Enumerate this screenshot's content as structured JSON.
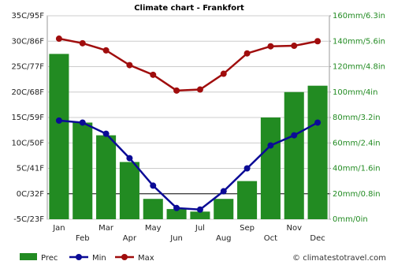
{
  "chart_data": {
    "type": "combo",
    "title": "Climate chart - Frankfort",
    "categories": [
      "Jan",
      "Feb",
      "Mar",
      "Apr",
      "May",
      "Jun",
      "Jul",
      "Aug",
      "Sep",
      "Oct",
      "Nov",
      "Dec"
    ],
    "ylim": [
      -5,
      35
    ],
    "yticks": [
      {
        "value": -5,
        "label": "-5C/23F"
      },
      {
        "value": 0,
        "label": "0C/32F"
      },
      {
        "value": 5,
        "label": "5C/41F"
      },
      {
        "value": 10,
        "label": "10C/50F"
      },
      {
        "value": 15,
        "label": "15C/59F"
      },
      {
        "value": 20,
        "label": "20C/68F"
      },
      {
        "value": 25,
        "label": "25C/77F"
      },
      {
        "value": 30,
        "label": "30C/86F"
      },
      {
        "value": 35,
        "label": "35C/95F"
      }
    ],
    "y2lim": [
      0,
      160
    ],
    "y2ticks": [
      {
        "value": 0,
        "label": "0mm/0in"
      },
      {
        "value": 20,
        "label": "20mm/0.8in"
      },
      {
        "value": 40,
        "label": "40mm/1.6in"
      },
      {
        "value": 60,
        "label": "60mm/2.4in"
      },
      {
        "value": 80,
        "label": "80mm/3.2in"
      },
      {
        "value": 100,
        "label": "100mm/4in"
      },
      {
        "value": 120,
        "label": "120mm/4.8in"
      },
      {
        "value": 140,
        "label": "140mm/5.6in"
      },
      {
        "value": 160,
        "label": "160mm/6.3in"
      }
    ],
    "grid": true,
    "series": [
      {
        "name": "Prec",
        "type": "bar",
        "axis": "y2",
        "color": "#228b22",
        "values": [
          130,
          76,
          66,
          45,
          16,
          8,
          6,
          16,
          30,
          80,
          100,
          105
        ]
      },
      {
        "name": "Min",
        "type": "line",
        "color": "#0b0b96",
        "values": [
          14.4,
          14,
          11.8,
          7,
          1.6,
          -2.8,
          -3.1,
          0.5,
          5,
          9.5,
          11.5,
          14
        ]
      },
      {
        "name": "Max",
        "type": "line",
        "color": "#a00d0d",
        "values": [
          30.5,
          29.6,
          28.2,
          25.3,
          23.4,
          20.3,
          20.5,
          23.6,
          27.6,
          29,
          29.1,
          30
        ]
      }
    ],
    "source": "© climatestotravel.com"
  }
}
